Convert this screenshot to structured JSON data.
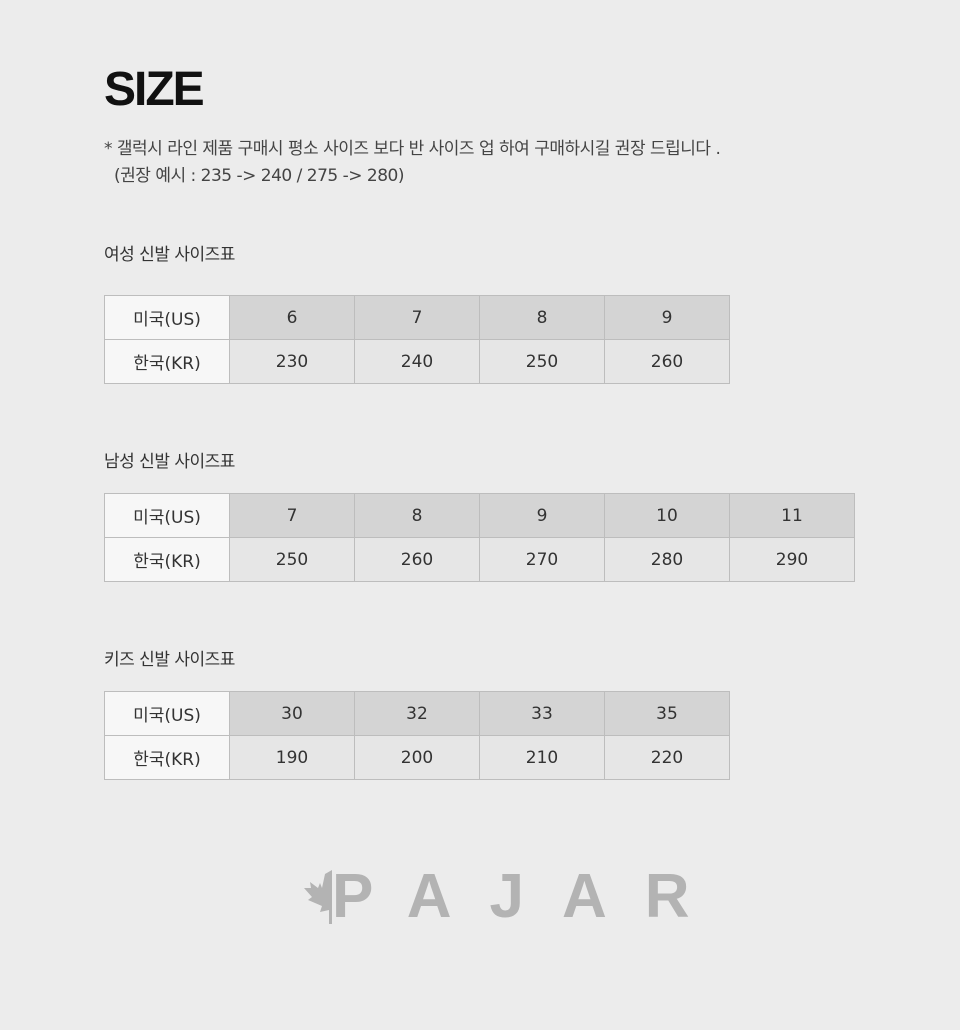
{
  "title": "SIZE",
  "note": {
    "line1": "* 갤럭시 라인 제품 구매시 평소 사이즈 보다 반 사이즈 업 하여 구매하시길 권장 드립니다 .",
    "line2": "(권장 예시 : 235 -> 240 / 275 -> 280)"
  },
  "tables": [
    {
      "title": "여성 신발 사이즈표",
      "us_label": "미국(US)",
      "kr_label": "한국(KR)",
      "us": [
        "6",
        "7",
        "8",
        "9"
      ],
      "kr": [
        "230",
        "240",
        "250",
        "260"
      ]
    },
    {
      "title": "남성 신발 사이즈표",
      "us_label": "미국(US)",
      "kr_label": "한국(KR)",
      "us": [
        "7",
        "8",
        "9",
        "10",
        "11"
      ],
      "kr": [
        "250",
        "260",
        "270",
        "280",
        "290"
      ]
    },
    {
      "title": "키즈 신발 사이즈표",
      "us_label": "미국(US)",
      "kr_label": "한국(KR)",
      "us": [
        "30",
        "32",
        "33",
        "35"
      ],
      "kr": [
        "190",
        "200",
        "210",
        "220"
      ]
    }
  ],
  "logo": {
    "text": "PAJAR",
    "icon": "maple-leaf-icon",
    "color": "#b3b3b3"
  }
}
